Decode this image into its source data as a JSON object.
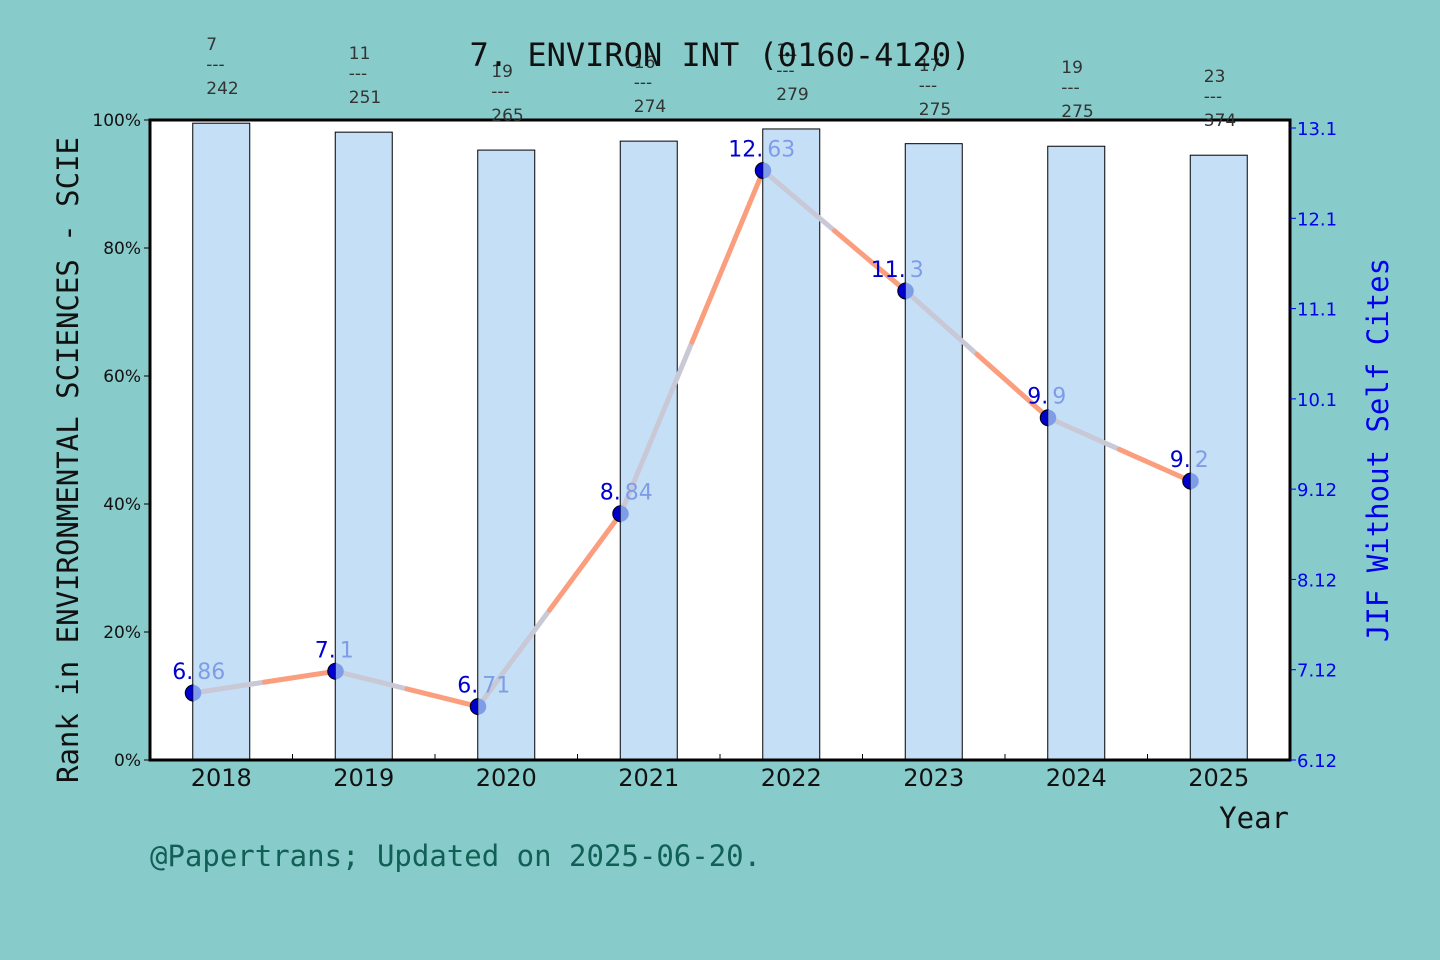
{
  "colors": {
    "background": "#88cbcb",
    "plot_bg": "#ffffff",
    "bar_fill": "#c5e0f6",
    "line_a": "#fb9e7e",
    "line_b": "#c8c8d6",
    "point_dark": "#0000cc",
    "point_light": "#7f9ce8",
    "right_axis": "#0000ee",
    "footer": "#116055"
  },
  "chart_data": {
    "type": "bar+line",
    "title": "7. ENVIRON INT (0160-4120)",
    "xlabel": "Year",
    "ylabel": "Rank in ENVIRONMENTAL SCIENCES - SCIE",
    "ylabel_right": "JIF Without Self Cites",
    "categories": [
      "2018",
      "2019",
      "2020",
      "2021",
      "2022",
      "2023",
      "2024",
      "2025"
    ],
    "ylim": [
      0,
      100
    ],
    "yticks": [
      "0%",
      "20%",
      "40%",
      "60%",
      "80%",
      "100%"
    ],
    "ylim_right": [
      6.12,
      13.1
    ],
    "yticks_right": [
      "6.12",
      "7.12",
      "8.12",
      "9.12",
      "10.1",
      "11.1",
      "12.1",
      "13.1"
    ],
    "series": [
      {
        "name": "Rank percentile (bars)",
        "type": "bar",
        "values": [
          99.5,
          98.1,
          95.3,
          96.7,
          98.6,
          96.3,
          95.9,
          94.5
        ],
        "rank_labels": [
          {
            "rank": "7",
            "total": "242"
          },
          {
            "rank": "11",
            "total": "251"
          },
          {
            "rank": "19",
            "total": "265"
          },
          {
            "rank": "16",
            "total": "274"
          },
          {
            "rank": "11",
            "total": "279"
          },
          {
            "rank": "17",
            "total": "275"
          },
          {
            "rank": "19",
            "total": "275"
          },
          {
            "rank": "23",
            "total": "374"
          }
        ]
      },
      {
        "name": "JIF Without Self Cites",
        "type": "line",
        "axis": "right",
        "values": [
          6.86,
          7.1,
          6.71,
          8.84,
          12.63,
          11.3,
          9.9,
          9.2
        ],
        "labels": [
          {
            "a": "6.",
            "b": "86"
          },
          {
            "a": "7.",
            "b": "1"
          },
          {
            "a": "6.",
            "b": "71"
          },
          {
            "a": "8.",
            "b": "84"
          },
          {
            "a": "12.",
            "b": "63"
          },
          {
            "a": "11.",
            "b": "3"
          },
          {
            "a": "9.",
            "b": "9"
          },
          {
            "a": "9.",
            "b": "2"
          }
        ]
      }
    ],
    "grid": false,
    "legend": "none"
  },
  "footer": "@Papertrans; Updated on 2025-06-20."
}
